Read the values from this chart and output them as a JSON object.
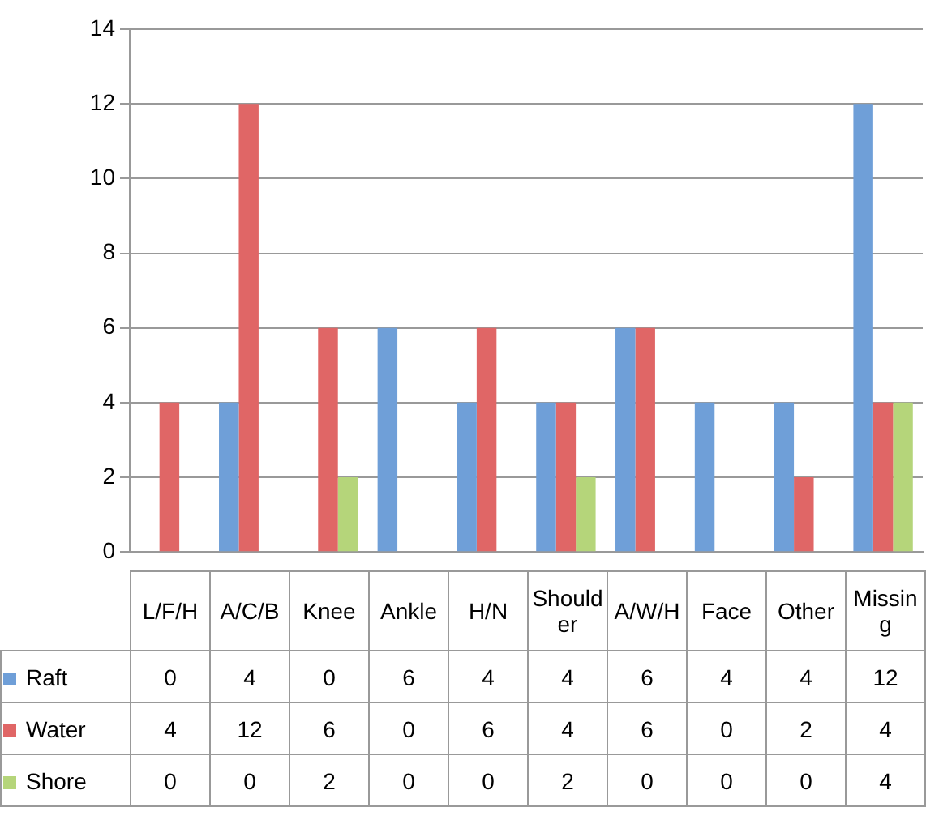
{
  "chart_data": {
    "type": "bar",
    "categories": [
      "L/F/H",
      "A/C/B",
      "Knee",
      "Ankle",
      "H/N",
      "Shoulder",
      "A/W/H",
      "Face",
      "Other",
      "Missing"
    ],
    "series": [
      {
        "name": "Raft",
        "color": "#6f9fd8",
        "values": [
          0,
          4,
          0,
          6,
          4,
          4,
          6,
          4,
          4,
          12
        ]
      },
      {
        "name": "Water",
        "color": "#e06666",
        "values": [
          4,
          12,
          6,
          0,
          6,
          4,
          6,
          0,
          2,
          4
        ]
      },
      {
        "name": "Shore",
        "color": "#b5d57a",
        "values": [
          0,
          0,
          2,
          0,
          0,
          2,
          0,
          0,
          0,
          4
        ]
      }
    ],
    "ylim": [
      0,
      14
    ],
    "yticks": [
      0,
      2,
      4,
      6,
      8,
      10,
      12,
      14
    ],
    "grid": "y",
    "legend": "bottom",
    "data_labels": true
  }
}
